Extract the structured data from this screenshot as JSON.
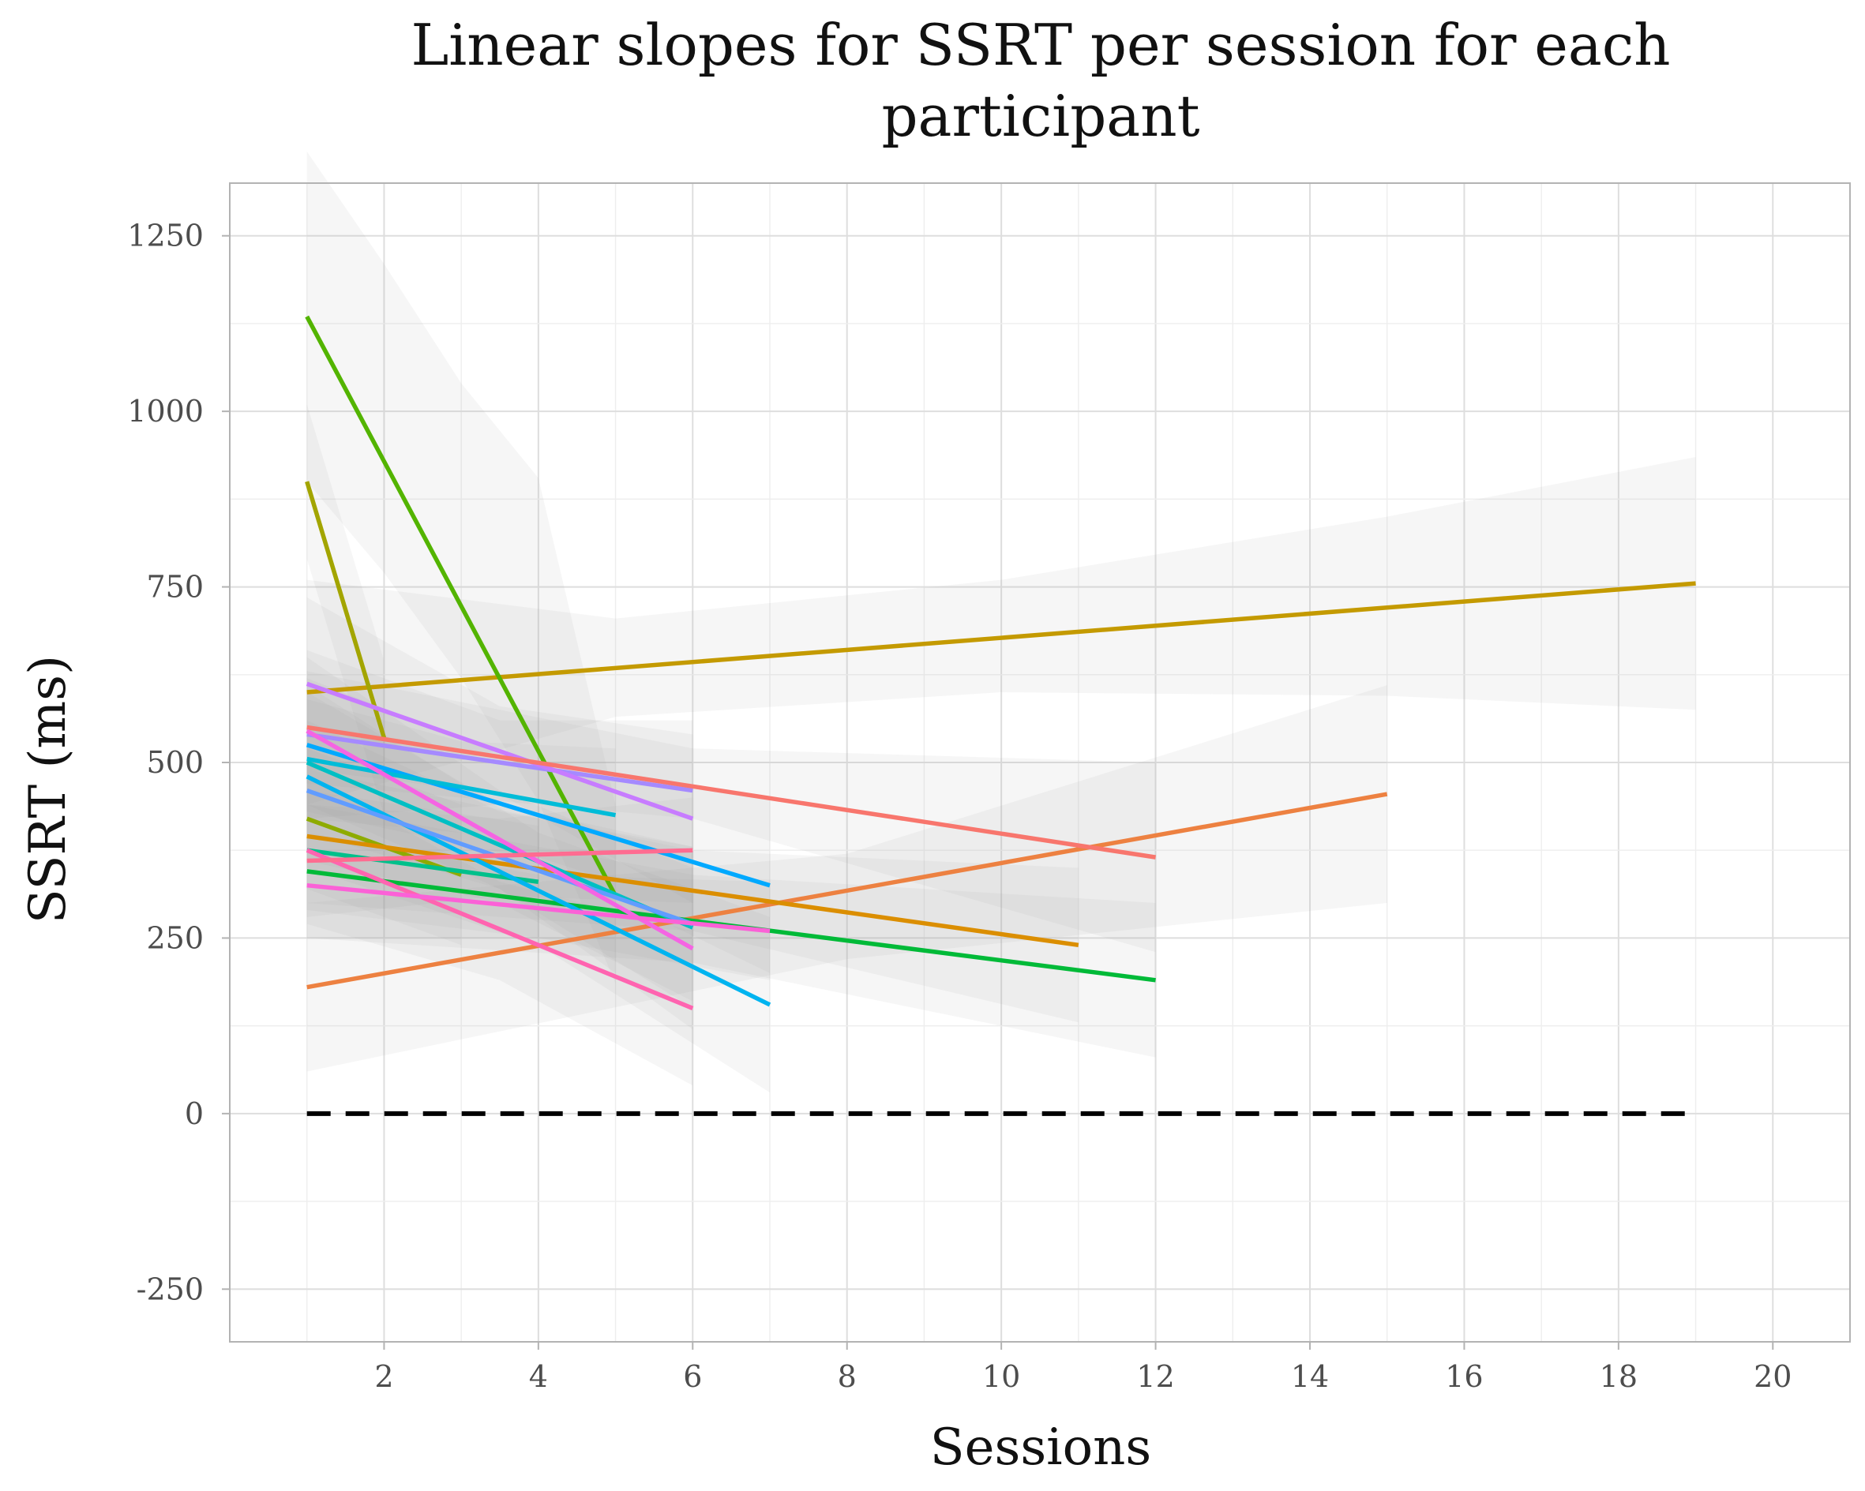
{
  "chart_data": {
    "type": "line",
    "title_lines": [
      "Linear slopes for SSRT per session for each",
      "participant"
    ],
    "xlabel": "Sessions",
    "ylabel": "SSRT (ms)",
    "xlim": [
      0,
      21
    ],
    "ylim": [
      -325,
      1325
    ],
    "x_ticks": [
      2,
      4,
      6,
      8,
      10,
      12,
      14,
      16,
      18,
      20
    ],
    "y_ticks": [
      -250,
      0,
      250,
      500,
      750,
      1000,
      1250
    ],
    "grid": true,
    "legend": "none",
    "reference_line": {
      "y": 0,
      "x": [
        1,
        19
      ],
      "style": "dashed",
      "color": "#000000"
    },
    "series": [
      {
        "color": "#C49A00",
        "x": [
          1,
          19
        ],
        "y": [
          600,
          755
        ],
        "ci": [
          [
            1,
            440,
            760
          ],
          [
            5,
            565,
            705
          ],
          [
            10,
            600,
            760
          ],
          [
            15,
            595,
            850
          ],
          [
            19,
            575,
            935
          ]
        ]
      },
      {
        "color": "#53B400",
        "x": [
          1,
          5
        ],
        "y": [
          1135,
          310
        ],
        "ci": [
          [
            1,
            900,
            1370
          ],
          [
            2,
            770,
            1210
          ],
          [
            3,
            620,
            1040
          ],
          [
            4,
            445,
            905
          ],
          [
            5,
            185,
            440
          ]
        ]
      },
      {
        "color": "#A58AFF",
        "x": [
          1,
          6
        ],
        "y": [
          540,
          460
        ],
        "ci": [
          [
            1,
            420,
            660
          ],
          [
            3.5,
            440,
            560
          ],
          [
            6,
            360,
            560
          ]
        ]
      },
      {
        "color": "#A3A500",
        "x": [
          1,
          2
        ],
        "y": [
          900,
          535
        ],
        "ci": [
          [
            1,
            790,
            1010
          ],
          [
            2,
            425,
            645
          ]
        ]
      },
      {
        "color": "#8EAB00",
        "x": [
          1,
          3
        ],
        "y": [
          420,
          340
        ],
        "ci": [
          [
            1,
            320,
            520
          ],
          [
            3,
            240,
            440
          ]
        ]
      },
      {
        "color": "#C77CFF",
        "x": [
          1,
          6
        ],
        "y": [
          612,
          420
        ],
        "ci": [
          [
            1,
            490,
            735
          ],
          [
            3.5,
            455,
            580
          ],
          [
            6,
            300,
            540
          ]
        ]
      },
      {
        "color": "#ED8141",
        "x": [
          1,
          15
        ],
        "y": [
          180,
          455
        ],
        "ci": [
          [
            1,
            60,
            300
          ],
          [
            8,
            220,
            370
          ],
          [
            15,
            300,
            610
          ]
        ]
      },
      {
        "color": "#F8766D",
        "x": [
          1,
          12
        ],
        "y": [
          550,
          365
        ],
        "ci": [
          [
            1,
            470,
            630
          ],
          [
            6,
            420,
            520
          ],
          [
            12,
            230,
            500
          ]
        ]
      },
      {
        "color": "#DB8E00",
        "x": [
          1,
          11
        ],
        "y": [
          395,
          240
        ],
        "ci": [
          [
            1,
            300,
            490
          ],
          [
            6,
            260,
            375
          ],
          [
            11,
            130,
            350
          ]
        ]
      },
      {
        "color": "#00BA38",
        "x": [
          1,
          12
        ],
        "y": [
          345,
          190
        ],
        "ci": [
          [
            1,
            250,
            440
          ],
          [
            6,
            215,
            340
          ],
          [
            12,
            80,
            300
          ]
        ]
      },
      {
        "color": "#00A9FF",
        "x": [
          1,
          7
        ],
        "y": [
          525,
          325
        ],
        "ci": [
          [
            1,
            430,
            620
          ],
          [
            4,
            360,
            490
          ],
          [
            7,
            200,
            450
          ]
        ]
      },
      {
        "color": "#00C08B",
        "x": [
          1,
          4
        ],
        "y": [
          375,
          330
        ],
        "ci": [
          [
            1,
            290,
            460
          ],
          [
            4,
            250,
            410
          ]
        ]
      },
      {
        "color": "#00B4F0",
        "x": [
          1,
          7
        ],
        "y": [
          480,
          155
        ],
        "ci": [
          [
            1,
            350,
            610
          ],
          [
            4,
            240,
            400
          ],
          [
            7,
            30,
            280
          ]
        ]
      },
      {
        "color": "#00BCD8",
        "x": [
          1,
          5
        ],
        "y": [
          505,
          425
        ],
        "ci": [
          [
            1,
            420,
            590
          ],
          [
            3,
            400,
            530
          ],
          [
            5,
            330,
            520
          ]
        ]
      },
      {
        "color": "#00BFC4",
        "x": [
          1,
          6
        ],
        "y": [
          500,
          265
        ],
        "ci": [
          [
            1,
            400,
            600
          ],
          [
            3.5,
            320,
            440
          ],
          [
            6,
            150,
            380
          ]
        ]
      },
      {
        "color": "#619CFF",
        "x": [
          1,
          6
        ],
        "y": [
          460,
          270
        ],
        "ci": [
          [
            1,
            360,
            560
          ],
          [
            3.5,
            300,
            430
          ],
          [
            6,
            160,
            380
          ]
        ]
      },
      {
        "color": "#F564E3",
        "x": [
          1,
          6
        ],
        "y": [
          545,
          235
        ],
        "ci": [
          [
            1,
            440,
            650
          ],
          [
            3.5,
            320,
            460
          ],
          [
            6,
            120,
            350
          ]
        ]
      },
      {
        "color": "#FF64B0",
        "x": [
          1,
          6
        ],
        "y": [
          375,
          150
        ],
        "ci": [
          [
            1,
            270,
            480
          ],
          [
            3.5,
            190,
            330
          ],
          [
            6,
            40,
            260
          ]
        ]
      },
      {
        "color": "#FF6C91",
        "x": [
          1,
          6
        ],
        "y": [
          360,
          375
        ],
        "ci": [
          [
            1,
            280,
            440
          ],
          [
            3.5,
            310,
            420
          ],
          [
            6,
            300,
            450
          ]
        ]
      },
      {
        "color": "#FB61D7",
        "x": [
          1,
          7
        ],
        "y": [
          325,
          260
        ],
        "ci": [
          [
            1,
            250,
            400
          ],
          [
            4,
            250,
            340
          ],
          [
            7,
            190,
            330
          ]
        ]
      }
    ]
  }
}
